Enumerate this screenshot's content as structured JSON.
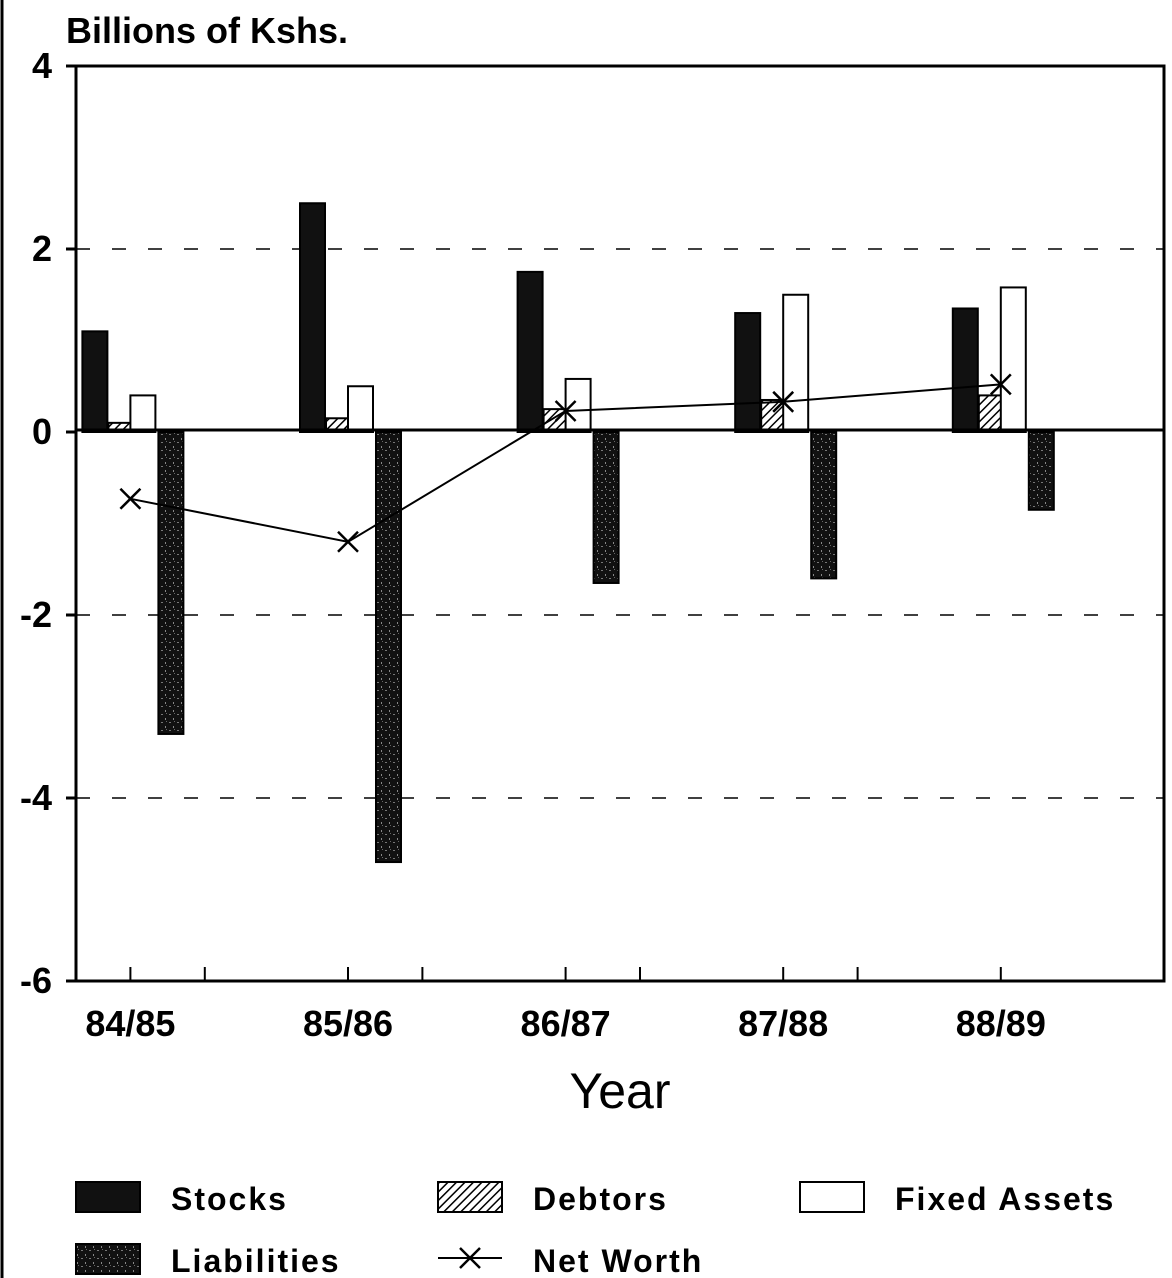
{
  "chart_data": {
    "type": "bar",
    "ylabel": "Billions of Kshs.",
    "xlabel": "Year",
    "categories": [
      "84/85",
      "85/86",
      "86/87",
      "87/88",
      "88/89"
    ],
    "ylim": [
      -6,
      4
    ],
    "yticks": [
      4,
      2,
      0,
      -2,
      -4,
      -6
    ],
    "ytick_labels": [
      "4",
      "2",
      "0",
      "-2",
      "-4",
      "-6"
    ],
    "grid": "dashed horizontal at 2 and -2, -4",
    "legend_position": "bottom",
    "series": [
      {
        "name": "Stocks",
        "kind": "bar",
        "values": [
          1.1,
          2.5,
          1.75,
          1.3,
          1.35
        ],
        "color": "#111111",
        "pattern": "solid"
      },
      {
        "name": "Debtors",
        "kind": "bar",
        "values": [
          0.1,
          0.15,
          0.25,
          0.35,
          0.4
        ],
        "color": "#444444",
        "pattern": "hatch"
      },
      {
        "name": "Fixed Assets",
        "kind": "bar",
        "values": [
          0.4,
          0.5,
          0.58,
          1.5,
          1.58
        ],
        "color": "#ffffff",
        "pattern": "outline"
      },
      {
        "name": "Liabilities",
        "kind": "bar",
        "values": [
          -3.3,
          -4.7,
          -1.65,
          -1.6,
          -0.85
        ],
        "color": "#1a1a1a",
        "pattern": "speckle"
      },
      {
        "name": "Net Worth",
        "kind": "line",
        "values": [
          -0.73,
          -1.2,
          0.23,
          0.33,
          0.52
        ],
        "color": "#000000",
        "marker": "x"
      }
    ]
  }
}
